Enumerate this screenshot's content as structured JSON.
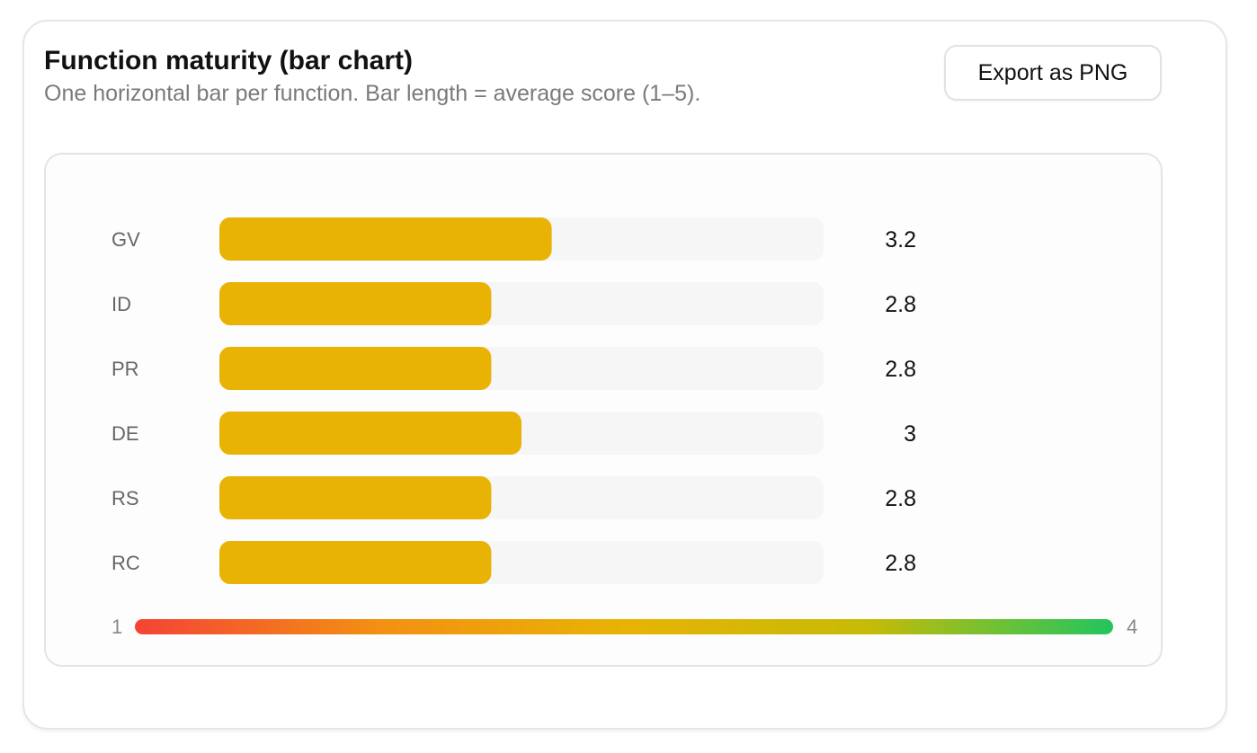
{
  "header": {
    "title": "Function maturity (bar chart)",
    "subtitle": "One horizontal bar per function. Bar length = average score (1–5).",
    "export_label": "Export as PNG"
  },
  "chart_data": {
    "type": "bar",
    "orientation": "horizontal",
    "categories": [
      "GV",
      "ID",
      "PR",
      "DE",
      "RS",
      "RC"
    ],
    "values": [
      3.2,
      2.8,
      2.8,
      3,
      2.8,
      2.8
    ],
    "value_labels": [
      "3.2",
      "2.8",
      "2.8",
      "3",
      "2.8",
      "2.8"
    ],
    "xlim": [
      1,
      5
    ],
    "bar_color": "#e8b304",
    "track_color": "#f6f6f6",
    "grid": false,
    "legend": {
      "type": "color-scale",
      "min_label": "1",
      "max_label": "4",
      "colors": [
        "#f44336",
        "#f39012",
        "#e8b304",
        "#c6bb07",
        "#22c55e"
      ]
    }
  }
}
